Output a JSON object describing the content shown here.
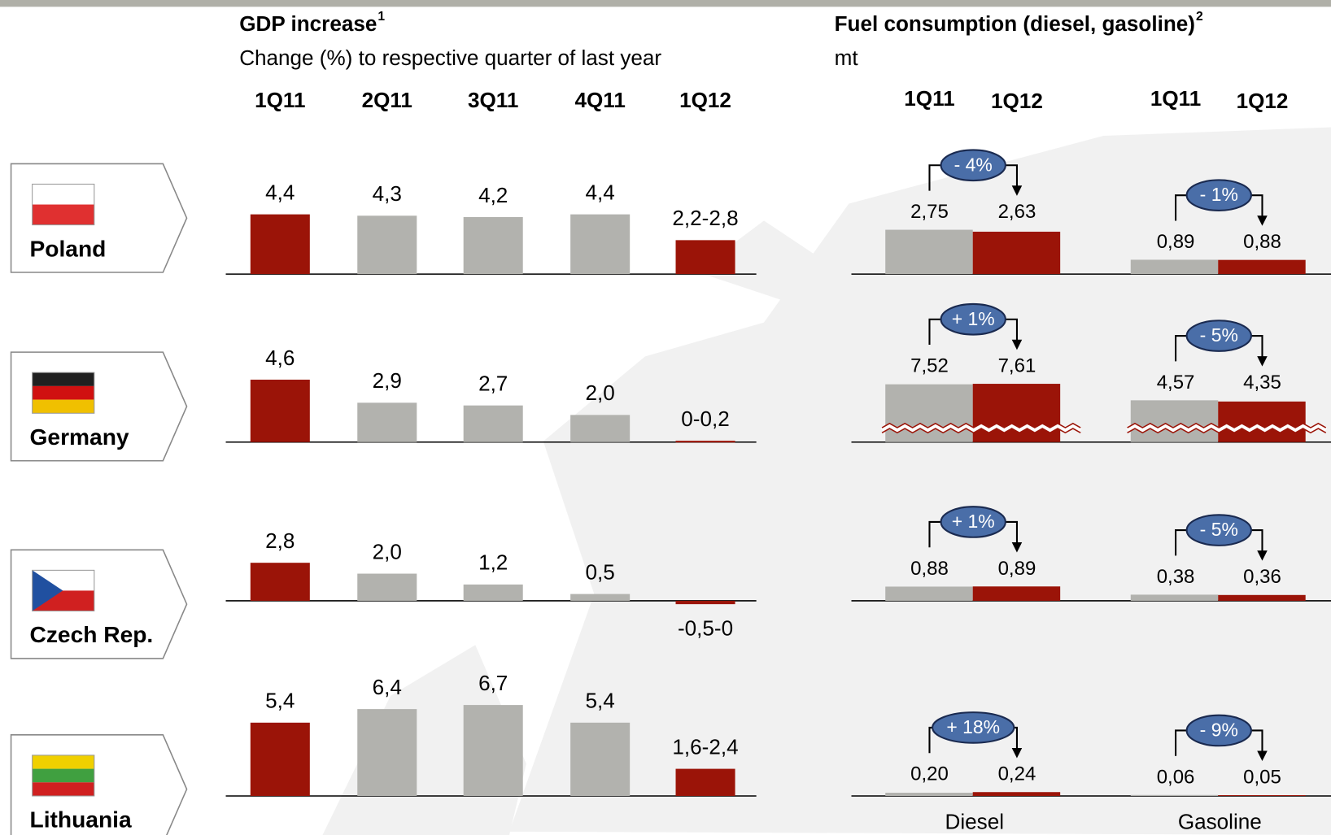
{
  "header": {
    "gdp": {
      "title": "GDP increase",
      "note": "1",
      "subtitle": "Change (%) to respective quarter of last year",
      "periods": [
        "1Q11",
        "2Q11",
        "3Q11",
        "4Q11",
        "1Q12"
      ],
      "period_colors": [
        "#9b1408",
        "#b2b2ae",
        "#b2b2ae",
        "#b2b2ae",
        "#9b1408"
      ]
    },
    "fuel": {
      "title": "Fuel consumption (diesel, gasoline)",
      "note": "2",
      "unit": "mt",
      "periods": [
        "1Q11",
        "1Q12"
      ],
      "period_colors": [
        "#b2b2ae",
        "#9b1408"
      ],
      "fuels": [
        "Diesel",
        "Gasoline"
      ],
      "bubble_color": "#4a6ea8"
    }
  },
  "countries": [
    {
      "name": "Poland",
      "gdp": {
        "values": [
          4.4,
          4.3,
          4.2,
          4.4
        ],
        "value_labels": [
          "4,4",
          "4,3",
          "4,2",
          "4,4"
        ],
        "forecast": {
          "range": [
            2.2,
            2.8
          ],
          "label": "2,2-2,8"
        }
      },
      "fuel": [
        {
          "values": [
            2.75,
            2.63
          ],
          "value_labels": [
            "2,75",
            "2,63"
          ],
          "change": -4,
          "change_label": "- 4%"
        },
        {
          "values": [
            0.89,
            0.88
          ],
          "value_labels": [
            "0,89",
            "0,88"
          ],
          "change": -1,
          "change_label": "- 1%"
        }
      ]
    },
    {
      "name": "Germany",
      "gdp": {
        "values": [
          4.6,
          2.9,
          2.7,
          2.0
        ],
        "value_labels": [
          "4,6",
          "2,9",
          "2,7",
          "2,0"
        ],
        "forecast": {
          "range": [
            0,
            0.2
          ],
          "label": "0-0,2"
        }
      },
      "broken_axis": true,
      "fuel": [
        {
          "values": [
            7.52,
            7.61
          ],
          "value_labels": [
            "7,52",
            "7,61"
          ],
          "change": 1,
          "change_label": "+ 1%"
        },
        {
          "values": [
            4.57,
            4.35
          ],
          "value_labels": [
            "4,57",
            "4,35"
          ],
          "change": -5,
          "change_label": "- 5%"
        }
      ]
    },
    {
      "name": "Czech Rep.",
      "gdp": {
        "values": [
          2.8,
          2.0,
          1.2,
          0.5
        ],
        "value_labels": [
          "2,8",
          "2,0",
          "1,2",
          "0,5"
        ],
        "forecast": {
          "range": [
            -0.5,
            0
          ],
          "label": "-0,5-0"
        }
      },
      "fuel": [
        {
          "values": [
            0.88,
            0.89
          ],
          "value_labels": [
            "0,88",
            "0,89"
          ],
          "change": 1,
          "change_label": "+ 1%"
        },
        {
          "values": [
            0.38,
            0.36
          ],
          "value_labels": [
            "0,38",
            "0,36"
          ],
          "change": -5,
          "change_label": "- 5%"
        }
      ]
    },
    {
      "name": "Lithuania",
      "gdp": {
        "values": [
          5.4,
          6.4,
          6.7,
          5.4
        ],
        "value_labels": [
          "5,4",
          "6,4",
          "6,7",
          "5,4"
        ],
        "forecast": {
          "range": [
            1.6,
            2.4
          ],
          "label": "1,6-2,4"
        }
      },
      "fuel": [
        {
          "values": [
            0.2,
            0.24
          ],
          "value_labels": [
            "0,20",
            "0,24"
          ],
          "change": 18,
          "change_label": "+ 18%"
        },
        {
          "values": [
            0.06,
            0.05
          ],
          "value_labels": [
            "0,06",
            "0,05"
          ],
          "change": -9,
          "change_label": "- 9%"
        }
      ]
    }
  ]
}
